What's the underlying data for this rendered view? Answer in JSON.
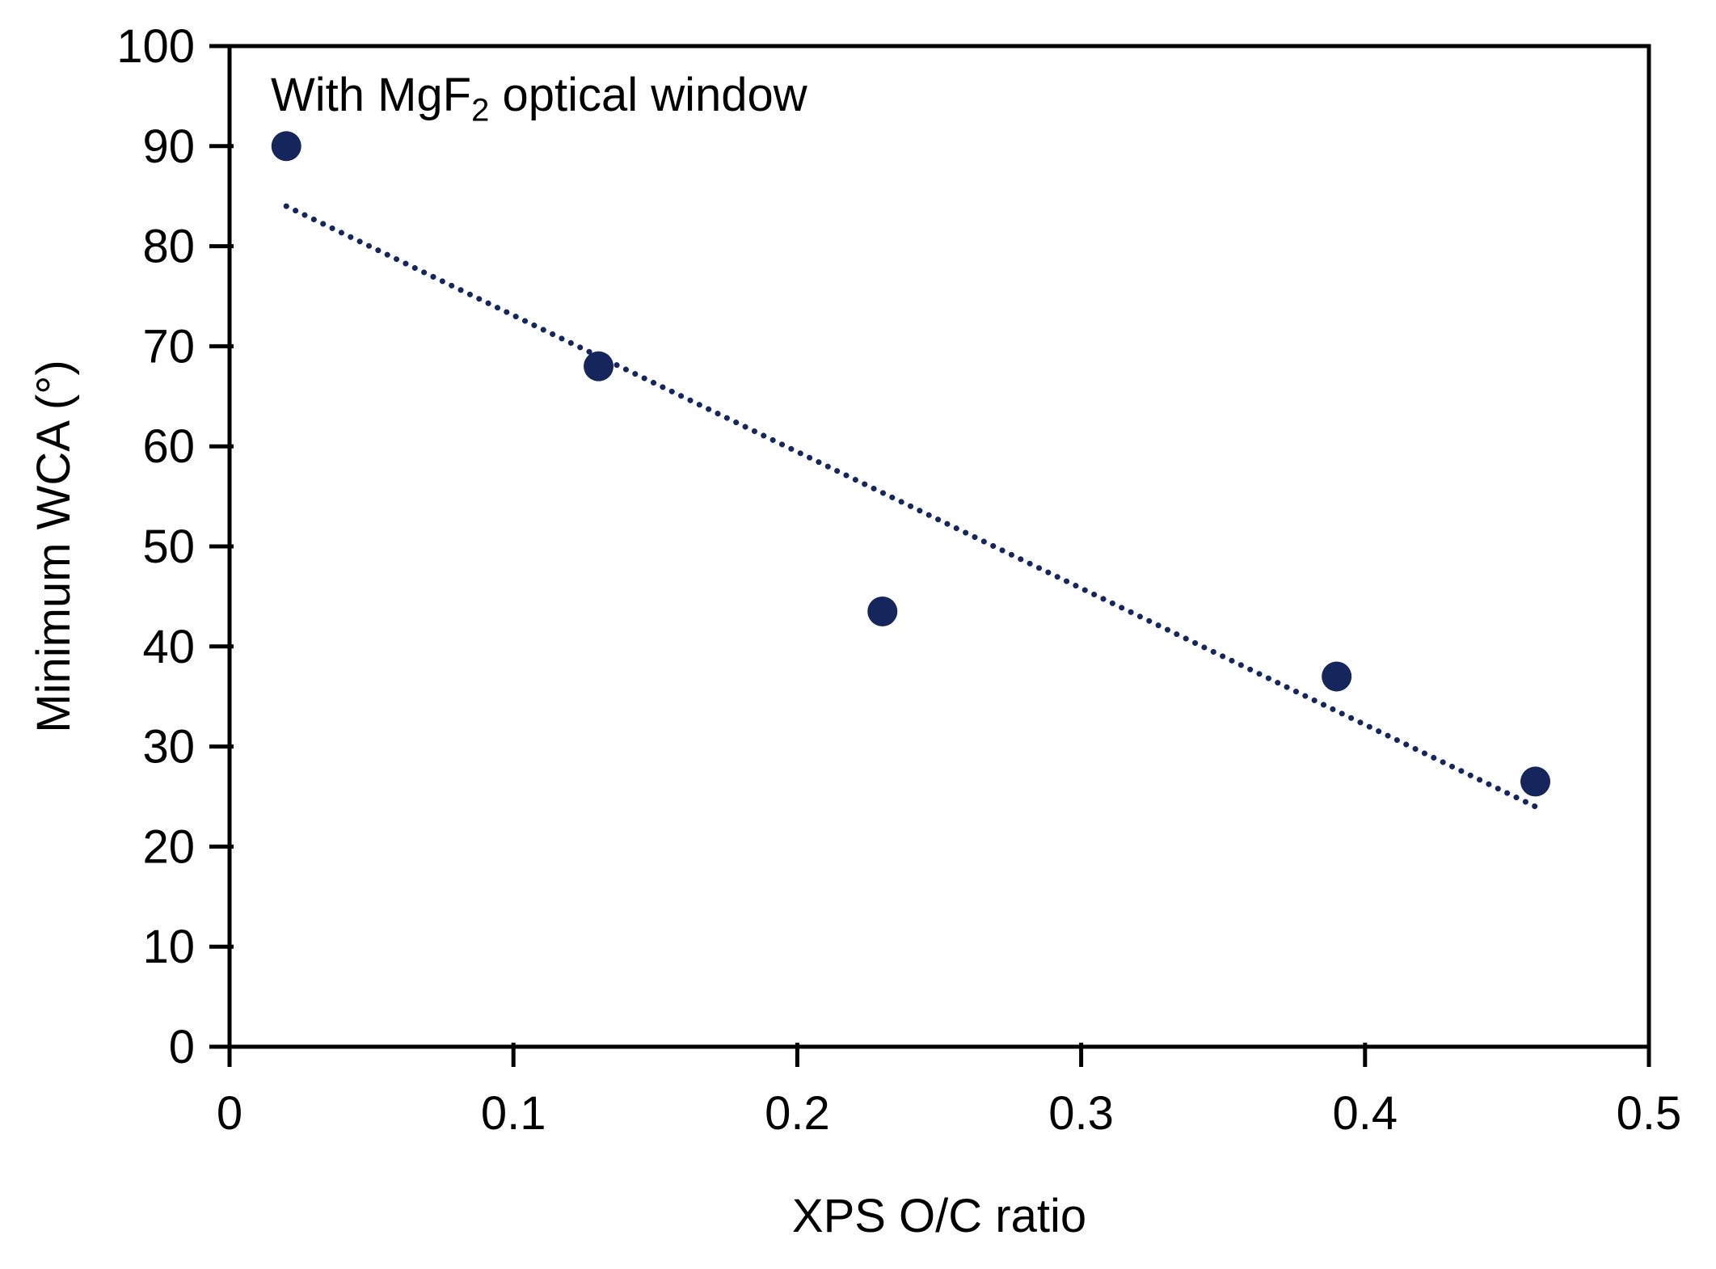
{
  "chart_data": {
    "type": "scatter",
    "title": "",
    "annotation": {
      "prefix": "With MgF",
      "subscript": "2",
      "suffix": " optical window"
    },
    "xlabel": "XPS O/C ratio",
    "ylabel": "Minimum WCA (°)",
    "xlim": [
      0,
      0.5
    ],
    "ylim": [
      0,
      100
    ],
    "x_ticks": [
      {
        "value": 0,
        "label": "0"
      },
      {
        "value": 0.1,
        "label": "0.1"
      },
      {
        "value": 0.2,
        "label": "0.2"
      },
      {
        "value": 0.3,
        "label": "0.3"
      },
      {
        "value": 0.4,
        "label": "0.4"
      },
      {
        "value": 0.5,
        "label": "0.5"
      }
    ],
    "y_ticks": [
      {
        "value": 0,
        "label": "0"
      },
      {
        "value": 10,
        "label": "10"
      },
      {
        "value": 20,
        "label": "20"
      },
      {
        "value": 30,
        "label": "30"
      },
      {
        "value": 40,
        "label": "40"
      },
      {
        "value": 50,
        "label": "50"
      },
      {
        "value": 60,
        "label": "60"
      },
      {
        "value": 70,
        "label": "70"
      },
      {
        "value": 80,
        "label": "80"
      },
      {
        "value": 90,
        "label": "90"
      },
      {
        "value": 100,
        "label": "100"
      }
    ],
    "series": [
      {
        "points": [
          {
            "x": 0.02,
            "y": 90
          },
          {
            "x": 0.13,
            "y": 68
          },
          {
            "x": 0.23,
            "y": 43.5
          },
          {
            "x": 0.39,
            "y": 37
          },
          {
            "x": 0.46,
            "y": 26.5
          }
        ]
      }
    ],
    "trendline": {
      "type": "linear",
      "style": "dotted",
      "x1": 0.02,
      "y1": 84,
      "x2": 0.46,
      "y2": 24
    },
    "colors": {
      "marker": "#14265C",
      "trendline": "#14265C",
      "axis": "#000000",
      "text": "#000000",
      "background": "#FFFFFF"
    },
    "grid": false,
    "legend": false
  }
}
